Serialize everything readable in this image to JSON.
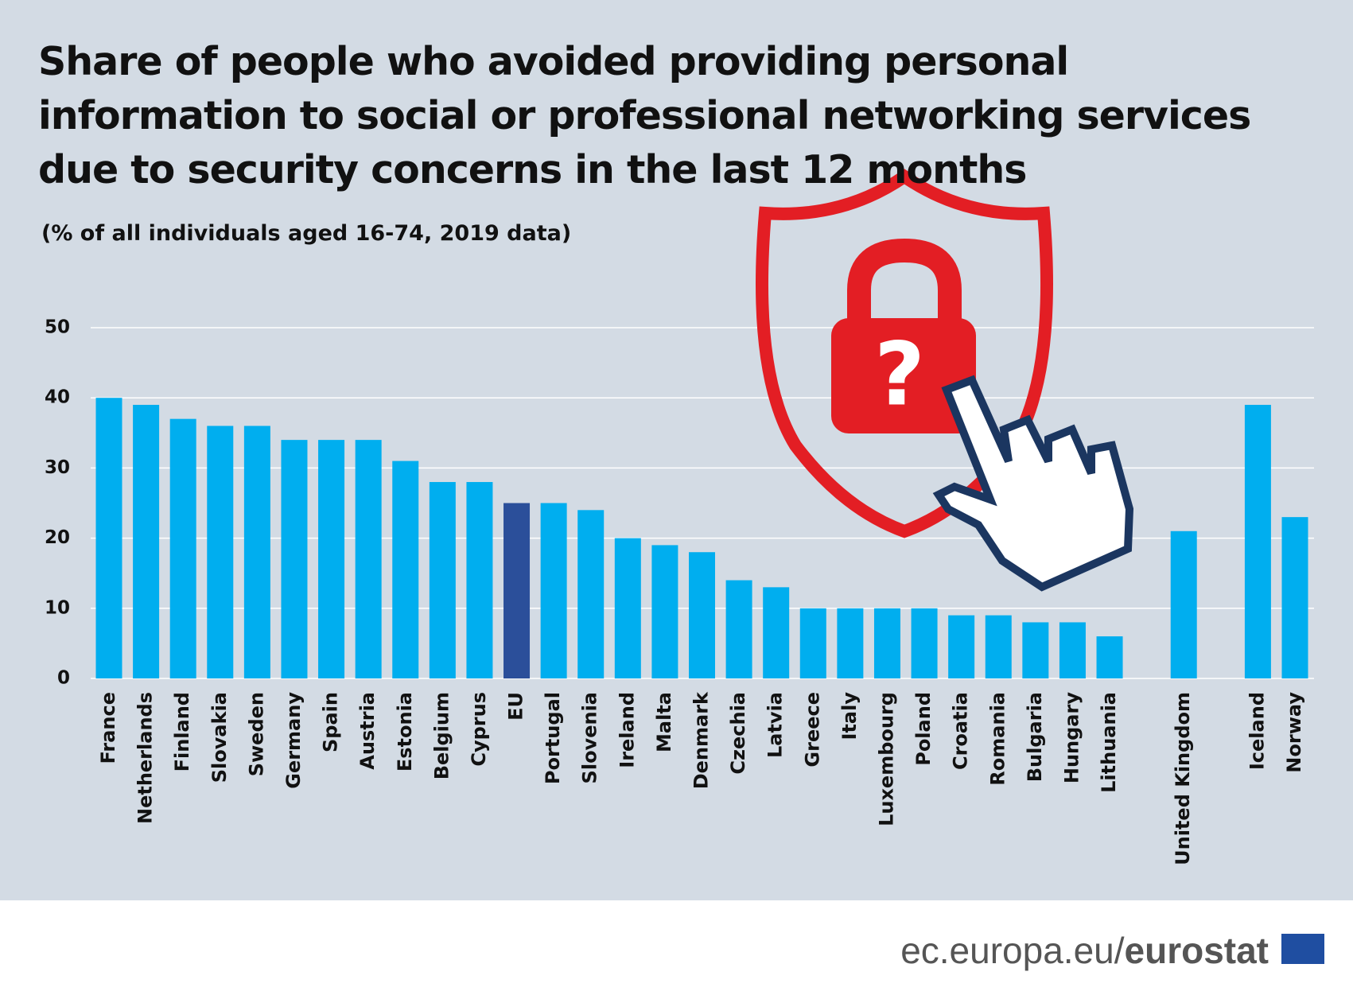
{
  "chart_data": {
    "type": "bar",
    "title": "Share of people who avoided providing personal information to social or professional networking services due to security concerns in the last 12 months",
    "subtitle": "(% of all individuals aged 16-74, 2019 data)",
    "categories": [
      "France",
      "Netherlands",
      "Finland",
      "Slovakia",
      "Sweden",
      "Germany",
      "Spain",
      "Austria",
      "Estonia",
      "Belgium",
      "Cyprus",
      "EU",
      "Portugal",
      "Slovenia",
      "Ireland",
      "Malta",
      "Denmark",
      "Czechia",
      "Latvia",
      "Greece",
      "Italy",
      "Luxembourg",
      "Poland",
      "Croatia",
      "Romania",
      "Bulgaria",
      "Hungary",
      "Lithuania",
      null,
      "United Kingdom",
      null,
      "Iceland",
      "Norway"
    ],
    "values": [
      40,
      39,
      37,
      36,
      36,
      34,
      34,
      34,
      31,
      28,
      28,
      25,
      25,
      24,
      20,
      19,
      18,
      14,
      13,
      10,
      10,
      10,
      10,
      9,
      9,
      8,
      8,
      6,
      null,
      21,
      null,
      39,
      23
    ],
    "colors": [
      "#00aeef",
      "#00aeef",
      "#00aeef",
      "#00aeef",
      "#00aeef",
      "#00aeef",
      "#00aeef",
      "#00aeef",
      "#00aeef",
      "#00aeef",
      "#00aeef",
      "#2b4f9a",
      "#00aeef",
      "#00aeef",
      "#00aeef",
      "#00aeef",
      "#00aeef",
      "#00aeef",
      "#00aeef",
      "#00aeef",
      "#00aeef",
      "#00aeef",
      "#00aeef",
      "#00aeef",
      "#00aeef",
      "#00aeef",
      "#00aeef",
      "#00aeef",
      null,
      "#00aeef",
      null,
      "#00aeef",
      "#00aeef"
    ],
    "ylim": [
      0,
      50
    ],
    "yticks": [
      0,
      10,
      20,
      30,
      40,
      50
    ],
    "grid": true
  },
  "footer": {
    "url": "ec.europa.eu/",
    "brand": "eurostat"
  }
}
